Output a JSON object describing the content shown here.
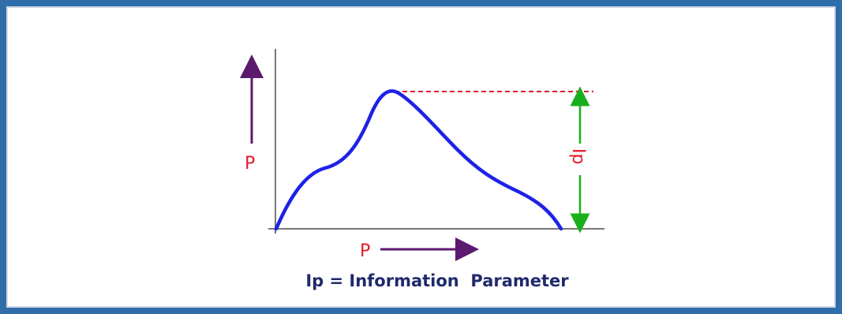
{
  "diagram": {
    "y_axis_label": "P",
    "x_axis_label": "P",
    "ip_label": "Ip",
    "caption": "Ip = Information  Parameter"
  },
  "colors": {
    "border": "#2f6ea8",
    "curve": "#1e22e6",
    "axis": "#777777",
    "arrow": "#5b1a6e",
    "label": "#e11a2c",
    "ip_arrow": "#19b01d",
    "peak_line": "#e11a2c",
    "caption": "#1f2a6b"
  }
}
